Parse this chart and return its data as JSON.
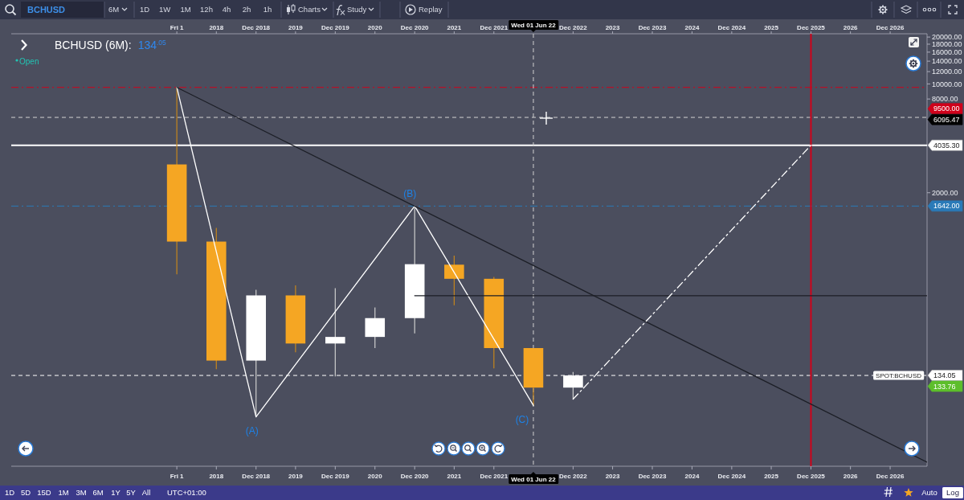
{
  "chart_data": {
    "type": "candlestick",
    "title": "BCHUSD (6M):",
    "subtitle": "134$^{.05}$",
    "x": [
      "2017-12-01",
      "2018-06-01",
      "2018-12-01",
      "2019-06-01",
      "2019-12-01",
      "2020-06-01",
      "2020-12-01",
      "2021-06-01",
      "2021-12-01",
      "2022-06-01",
      "2022-12-01"
    ],
    "ohlc": [
      [
        3040,
        9500,
        598,
        971
      ],
      [
        971,
        1190,
        147,
        167
      ],
      [
        167,
        476,
        72.6,
        438
      ],
      [
        438,
        508,
        189,
        215
      ],
      [
        215,
        488,
        132,
        237
      ],
      [
        237,
        366,
        201,
        313
      ],
      [
        313,
        1642,
        250,
        695
      ],
      [
        690,
        788,
        378,
        560
      ],
      [
        560,
        576,
        149,
        201
      ],
      [
        201,
        201,
        86,
        112
      ],
      [
        112,
        141,
        94.4,
        134.05
      ]
    ],
    "colors": [
      "#f5a623",
      "#f5a623",
      "#ffffff",
      "#f5a623",
      "#ffffff",
      "#ffffff",
      "#ffffff",
      "#f5a623",
      "#f5a623",
      "#f5a623",
      "#ffffff"
    ],
    "series": [
      {
        "type": "line",
        "color": "#ffffff",
        "x": [
          "2017-12-01",
          "2018-12-01",
          "2020-12-01",
          "2022-06-01"
        ],
        "values": [
          9500,
          72.6,
          1642,
          86
        ]
      },
      {
        "type": "line",
        "color": "#1c1e26",
        "x": [
          "2017-12-01",
          "2027-05-20"
        ],
        "values": [
          9500,
          37.2
        ]
      },
      {
        "type": "line",
        "color": "#1c1e26",
        "x": [
          "2020-12-01",
          "2027-05-20"
        ],
        "values": [
          436,
          436
        ]
      },
      {
        "type": "line",
        "color": "#ffffff",
        "line_style": "dashdot",
        "x": [
          "2022-12-01",
          "2025-12-01"
        ],
        "values": [
          94.4,
          4035.3
        ]
      }
    ],
    "xlim": [
      "2015-10-30",
      "2027-05-20"
    ],
    "xticks": [
      {
        "value": "2017-12-01",
        "label": "Fri 1"
      },
      {
        "value": "2018-06-01",
        "label": "2018"
      },
      {
        "value": "2018-12-01",
        "label": "Dec 2018"
      },
      {
        "value": "2019-06-01",
        "label": "2019"
      },
      {
        "value": "2019-12-01",
        "label": "Dec 2019"
      },
      {
        "value": "2020-06-01",
        "label": "2020"
      },
      {
        "value": "2020-12-01",
        "label": "Dec 2020"
      },
      {
        "value": "2021-06-01",
        "label": "2021"
      },
      {
        "value": "2021-12-01",
        "label": "Dec 2021"
      },
      {
        "value": "2022-12-01",
        "label": "Dec 2022"
      },
      {
        "value": "2023-06-01",
        "label": "2023"
      },
      {
        "value": "2023-12-01",
        "label": "Dec 2023"
      },
      {
        "value": "2024-06-01",
        "label": "2024"
      },
      {
        "value": "2024-12-01",
        "label": "Dec 2024"
      },
      {
        "value": "2025-06-01",
        "label": "2025"
      },
      {
        "value": "2025-12-01",
        "label": "Dec 2025"
      },
      {
        "value": "2026-06-01",
        "label": "2026"
      },
      {
        "value": "2026-12-01",
        "label": "Dec 2026"
      }
    ],
    "x2lim": [
      "2015-10-30",
      "2027-05-20"
    ],
    "x2ticks": [
      {
        "value": "2017-12-01",
        "label": "Fri 1"
      },
      {
        "value": "2018-06-01",
        "label": "2018"
      },
      {
        "value": "2018-12-01",
        "label": "Dec 2018"
      },
      {
        "value": "2019-06-01",
        "label": "2019"
      },
      {
        "value": "2019-12-01",
        "label": "Dec 2019"
      },
      {
        "value": "2020-06-01",
        "label": "2020"
      },
      {
        "value": "2020-12-01",
        "label": "Dec 2020"
      },
      {
        "value": "2021-06-01",
        "label": "2021"
      },
      {
        "value": "2021-12-01",
        "label": "Dec 2021"
      },
      {
        "value": "2022-12-01",
        "label": "Dec 2022"
      },
      {
        "value": "2023-06-01",
        "label": "2023"
      },
      {
        "value": "2023-12-01",
        "label": "Dec 2023"
      },
      {
        "value": "2024-06-01",
        "label": "2024"
      },
      {
        "value": "2024-12-01",
        "label": "Dec 2024"
      },
      {
        "value": "2025-06-01",
        "label": "2025"
      },
      {
        "value": "2025-12-01",
        "label": "Dec 2025"
      },
      {
        "value": "2026-06-01",
        "label": "2026"
      },
      {
        "value": "2026-12-01",
        "label": "Dec 2026"
      }
    ],
    "ylim": [
      35,
      21000
    ],
    "yticks": [
      {
        "value": 20000,
        "label": "20000.00"
      },
      {
        "value": 18000,
        "label": "18000.00"
      },
      {
        "value": 16000,
        "label": "16000.00"
      },
      {
        "value": 14000,
        "label": "14000.00"
      },
      {
        "value": 12000,
        "label": "12000.00"
      },
      {
        "value": 10000,
        "label": "10000.00"
      },
      {
        "value": 8000,
        "label": "8000.00"
      },
      {
        "value": 2000,
        "label": "2000.00"
      }
    ],
    "log": true,
    "ref_lines": [
      {
        "axis": "y",
        "value": 9500,
        "label": "9500.00",
        "color": "#d0021b",
        "line_style": "dashdot"
      },
      {
        "axis": "y",
        "value": 6095.47,
        "label": "6095.47",
        "color": "#d2d2d2",
        "line_style": "dashed"
      },
      {
        "axis": "y",
        "value": 4035.3,
        "label": "4035.30",
        "color": "#ffffff",
        "line_style": "solid"
      },
      {
        "axis": "y",
        "value": 1642,
        "label": "1642.00",
        "color": "#2a7ab8",
        "line_style": "dashdot"
      },
      {
        "axis": "y",
        "value": 134.05,
        "label": "134.05",
        "color": "#ffffff",
        "line_style": "dashed"
      },
      {
        "axis": "x",
        "value": "2022-06-01",
        "label": "Wed 01 Jun 22",
        "color": "#d2d2d2",
        "line_style": "dashed"
      },
      {
        "axis": "x",
        "value": "2025-12-01",
        "color": "#d0021b",
        "line_style": "solid"
      }
    ],
    "annotations": [
      {
        "text": "(A)",
        "x": "2018-12-01",
        "y": 72.6
      },
      {
        "text": "(B)",
        "x": "2020-12-01",
        "y": 1642
      },
      {
        "text": "(C)",
        "x": "2022-06-01",
        "y": 86
      },
      {
        "text": "SPOT:BCHUSD",
        "y": 134.05
      },
      {
        "text": "133.76",
        "y": 133.76
      },
      "Open",
      "BCHUSD",
      "6M",
      "1D",
      "1W",
      "1M",
      "12h",
      "4h",
      "2h",
      "1h",
      "Charts",
      "Study",
      "Replay",
      "1D",
      "5D",
      "15D",
      "1M",
      "3M",
      "6M",
      "1Y",
      "5Y",
      "All",
      "UTC+01:00",
      "Auto",
      "Log"
    ]
  }
}
